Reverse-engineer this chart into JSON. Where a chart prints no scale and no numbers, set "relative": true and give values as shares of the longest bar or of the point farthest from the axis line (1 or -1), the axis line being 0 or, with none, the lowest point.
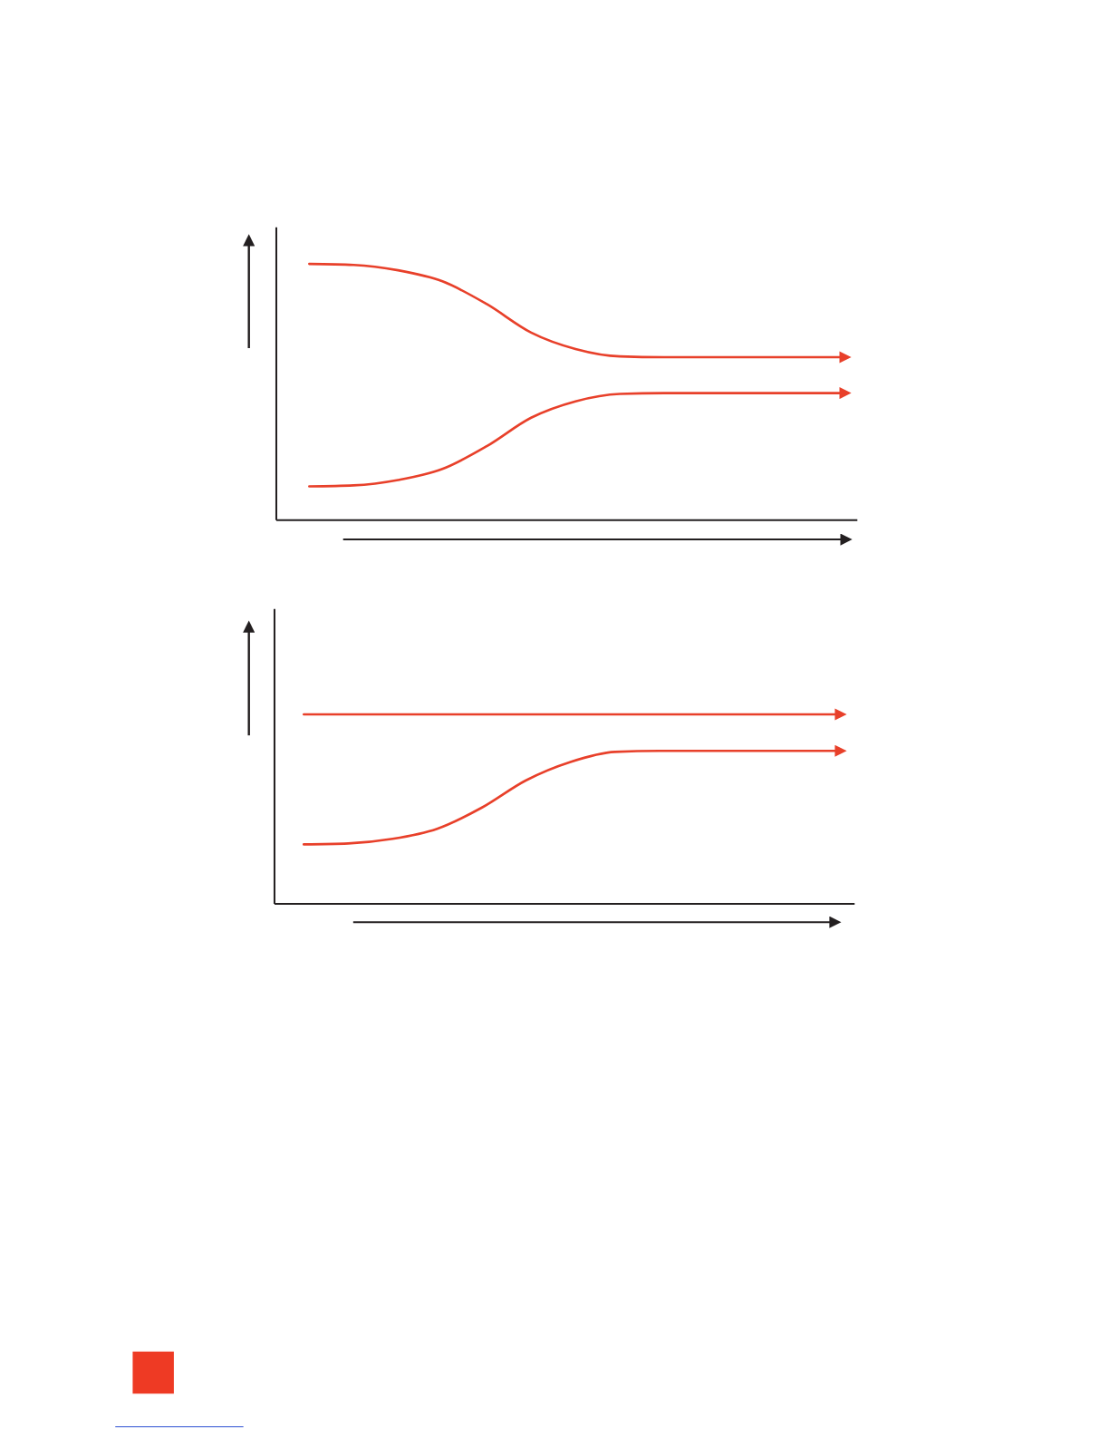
{
  "chart_data": [
    {
      "type": "line",
      "relative": true,
      "categories": [
        null,
        null,
        null,
        null,
        null,
        null,
        null,
        null,
        null,
        null,
        null,
        null,
        null
      ],
      "series": [
        {
          "color": "#e8402a",
          "values": [
            1,
            0.996,
            0.975,
            0.932,
            0.843,
            0.732,
            0.668,
            0.639,
            0.636,
            0.636,
            0.636,
            0.636,
            0.636
          ]
        },
        {
          "color": "#e8402a",
          "values": [
            0.132,
            0.136,
            0.157,
            0.2,
            0.289,
            0.4,
            0.464,
            0.493,
            0.496,
            0.496,
            0.496,
            0.496,
            0.496
          ]
        }
      ]
    },
    {
      "type": "line",
      "relative": true,
      "categories": [
        null,
        null,
        null,
        null,
        null,
        null,
        null,
        null,
        null,
        null,
        null,
        null,
        null
      ],
      "series": [
        {
          "color": "#e8402a",
          "values": [
            1,
            1,
            1,
            1,
            1,
            1,
            1,
            1,
            1,
            1,
            1,
            1,
            1
          ]
        },
        {
          "color": "#e8402a",
          "values": [
            0.314,
            0.319,
            0.343,
            0.396,
            0.507,
            0.652,
            0.749,
            0.802,
            0.807,
            0.807,
            0.807,
            0.807,
            0.807
          ]
        }
      ]
    }
  ]
}
